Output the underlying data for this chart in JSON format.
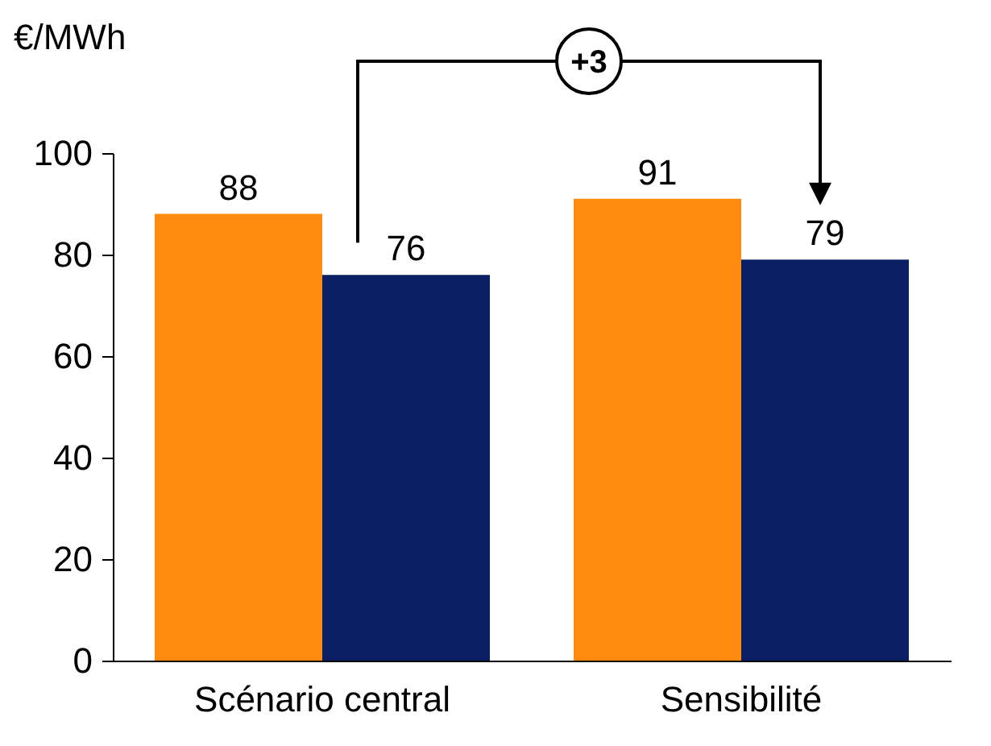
{
  "chart_data": {
    "type": "bar",
    "ylabel": "€/MWh",
    "categories": [
      "Scénario central",
      "Sensibilité"
    ],
    "series": [
      {
        "color": "#ff8a0d",
        "values": [
          88,
          91
        ]
      },
      {
        "color": "#0b1f65",
        "values": [
          76,
          79
        ]
      }
    ],
    "ylim": [
      0,
      100
    ],
    "yticks": [
      0,
      20,
      40,
      60,
      80,
      100
    ],
    "grid": false,
    "legend": false,
    "data_labels": true,
    "annotations": [
      "+3"
    ]
  }
}
